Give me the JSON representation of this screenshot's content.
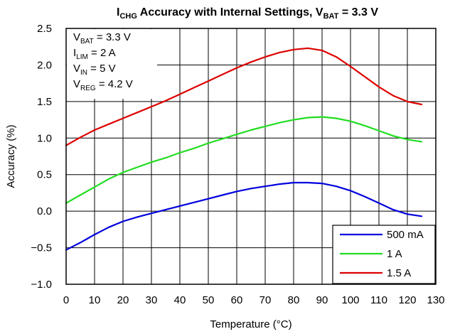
{
  "chart_data": {
    "type": "line",
    "title": {
      "parts": [
        {
          "text": "I",
          "sub": false
        },
        {
          "text": "CHG",
          "sub": true
        },
        {
          "text": " Accuracy with Internal Settings, V",
          "sub": false
        },
        {
          "text": "BAT",
          "sub": true
        },
        {
          "text": " = 3.3 V",
          "sub": false
        }
      ]
    },
    "xlabel": "Temperature (°C)",
    "ylabel": "Accuracy (%)",
    "xlim": [
      0,
      130
    ],
    "ylim": [
      -1.0,
      2.5
    ],
    "xticks": [
      0,
      10,
      20,
      30,
      40,
      50,
      60,
      70,
      80,
      90,
      100,
      110,
      120,
      130
    ],
    "yticks": [
      {
        "value": -1.0,
        "label": "−1.0"
      },
      {
        "value": -0.5,
        "label": "−0.5"
      },
      {
        "value": 0.0,
        "label": "0.0"
      },
      {
        "value": 0.5,
        "label": "0.5"
      },
      {
        "value": 1.0,
        "label": "1.0"
      },
      {
        "value": 1.5,
        "label": "1.5"
      },
      {
        "value": 2.0,
        "label": "2.0"
      },
      {
        "value": 2.5,
        "label": "2.5"
      }
    ],
    "grid": true,
    "legend_position": "bottom-right",
    "annotations": [
      [
        {
          "text": "V",
          "sub": false
        },
        {
          "text": "BAT",
          "sub": true
        },
        {
          "text": " = 3.3 V",
          "sub": false
        }
      ],
      [
        {
          "text": "I",
          "sub": false
        },
        {
          "text": "LIM",
          "sub": true
        },
        {
          "text": " = 2 A",
          "sub": false
        }
      ],
      [
        {
          "text": "V",
          "sub": false
        },
        {
          "text": "IN",
          "sub": true
        },
        {
          "text": " = 5 V",
          "sub": false
        }
      ],
      [
        {
          "text": "V",
          "sub": false
        },
        {
          "text": "REG",
          "sub": true
        },
        {
          "text": " = 4.2 V",
          "sub": false
        }
      ]
    ],
    "series": [
      {
        "name": "500 mA",
        "color": "#0000dd",
        "x": [
          0,
          5,
          10,
          15,
          20,
          25,
          30,
          35,
          40,
          45,
          50,
          55,
          60,
          65,
          70,
          75,
          80,
          85,
          90,
          95,
          100,
          105,
          110,
          115,
          120,
          125
        ],
        "y": [
          -0.53,
          -0.43,
          -0.32,
          -0.22,
          -0.14,
          -0.08,
          -0.03,
          0.02,
          0.07,
          0.12,
          0.17,
          0.22,
          0.27,
          0.31,
          0.34,
          0.37,
          0.39,
          0.39,
          0.38,
          0.34,
          0.28,
          0.2,
          0.11,
          0.02,
          -0.04,
          -0.07
        ]
      },
      {
        "name": "1 A",
        "color": "#22dd22",
        "x": [
          0,
          5,
          10,
          15,
          20,
          25,
          30,
          35,
          40,
          45,
          50,
          55,
          60,
          65,
          70,
          75,
          80,
          85,
          90,
          95,
          100,
          105,
          110,
          115,
          120,
          125
        ],
        "y": [
          0.11,
          0.22,
          0.33,
          0.44,
          0.53,
          0.6,
          0.67,
          0.73,
          0.8,
          0.86,
          0.93,
          0.99,
          1.05,
          1.11,
          1.16,
          1.21,
          1.25,
          1.28,
          1.29,
          1.27,
          1.23,
          1.17,
          1.1,
          1.03,
          0.98,
          0.95
        ]
      },
      {
        "name": "1.5 A",
        "color": "#dd0000",
        "x": [
          0,
          5,
          10,
          15,
          20,
          25,
          30,
          35,
          40,
          45,
          50,
          55,
          60,
          65,
          70,
          75,
          80,
          85,
          90,
          95,
          100,
          105,
          110,
          115,
          120,
          125
        ],
        "y": [
          0.9,
          1.01,
          1.11,
          1.19,
          1.27,
          1.35,
          1.43,
          1.51,
          1.6,
          1.69,
          1.78,
          1.87,
          1.96,
          2.04,
          2.11,
          2.17,
          2.21,
          2.23,
          2.2,
          2.11,
          1.98,
          1.84,
          1.7,
          1.58,
          1.5,
          1.46
        ]
      }
    ]
  }
}
